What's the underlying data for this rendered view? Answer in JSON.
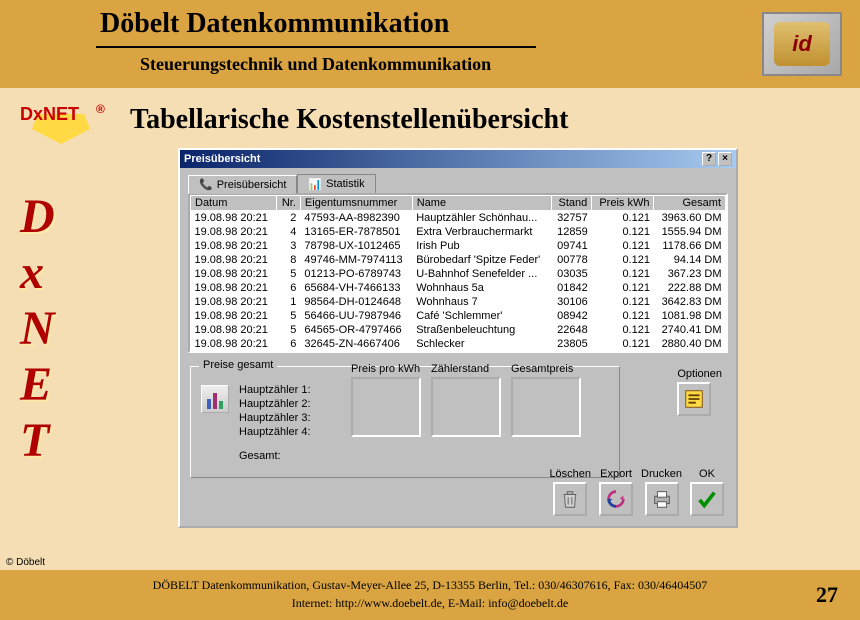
{
  "header": {
    "title": "Döbelt Datenkommunikation",
    "subtitle": "Steuerungstechnik und Datenkommunikation",
    "logo_text": "id"
  },
  "badge": {
    "d": "D",
    "x": "x",
    "net": "NET",
    "reg": "®"
  },
  "vertical": [
    "D",
    "x",
    "N",
    "E",
    "T"
  ],
  "body_title": "Tabellarische Kostenstellenübersicht",
  "dialog": {
    "title": "Preisübersicht",
    "help": "?",
    "close": "×",
    "tabs": {
      "t1": "Preisübersicht",
      "t2": "Statistik"
    },
    "columns": [
      "Datum",
      "Nr.",
      "Eigentumsnummer",
      "Name",
      "Stand",
      "Preis kWh",
      "Gesamt"
    ],
    "rows": [
      [
        "19.08.98 20:21",
        "2",
        "47593-AA-8982390",
        "Hauptzähler Schönhau...",
        "32757",
        "0.121",
        "3963.60 DM"
      ],
      [
        "19.08.98 20:21",
        "4",
        "13165-ER-7878501",
        "Extra Verbrauchermarkt",
        "12859",
        "0.121",
        "1555.94 DM"
      ],
      [
        "19.08.98 20:21",
        "3",
        "78798-UX-1012465",
        "Irish Pub",
        "09741",
        "0.121",
        "1178.66 DM"
      ],
      [
        "19.08.98 20:21",
        "8",
        "49746-MM-7974113",
        "Bürobedarf 'Spitze Feder'",
        "00778",
        "0.121",
        "94.14 DM"
      ],
      [
        "19.08.98 20:21",
        "5",
        "01213-PO-6789743",
        "U-Bahnhof Senefelder ...",
        "03035",
        "0.121",
        "367.23 DM"
      ],
      [
        "19.08.98 20:21",
        "6",
        "65684-VH-7466133",
        "Wohnhaus 5a",
        "01842",
        "0.121",
        "222.88 DM"
      ],
      [
        "19.08.98 20:21",
        "1",
        "98564-DH-0124648",
        "Wohnhaus 7",
        "30106",
        "0.121",
        "3642.83 DM"
      ],
      [
        "19.08.98 20:21",
        "5",
        "56466-UU-7987946",
        "Café 'Schlemmer'",
        "08942",
        "0.121",
        "1081.98 DM"
      ],
      [
        "19.08.98 20:21",
        "5",
        "64565-OR-4797466",
        "Straßenbeleuchtung",
        "22648",
        "0.121",
        "2740.41 DM"
      ],
      [
        "19.08.98 20:21",
        "6",
        "32645-ZN-4667406",
        "Schlecker",
        "23805",
        "0.121",
        "2880.40 DM"
      ]
    ],
    "group_title": "Preise gesamt",
    "hz": [
      "Hauptzähler 1:",
      "Hauptzähler 2:",
      "Hauptzähler 3:",
      "Hauptzähler 4:"
    ],
    "gesamt": "Gesamt:",
    "sunk_labels": [
      "Preis pro kWh",
      "Zählerstand",
      "Gesamtpreis"
    ],
    "optionen": "Optionen",
    "buttons": {
      "loeschen": "Löschen",
      "export": "Export",
      "drucken": "Drucken",
      "ok": "OK"
    }
  },
  "footer": {
    "line1": "DÖBELT Datenkommunikation, Gustav-Meyer-Allee 25, D-13355 Berlin, Tel.: 030/46307616, Fax: 030/46404507",
    "line2": "Internet: http://www.doebelt.de, E-Mail: info@doebelt.de",
    "page": "27",
    "copyright": "© Döbelt"
  },
  "colors": {
    "slide_bg": "#f5deb3",
    "bar_bg": "#d9a441",
    "brand_red": "#b00000",
    "win_bg": "#c0c0c0",
    "title_grad_a": "#0a246a",
    "title_grad_b": "#a6caf0"
  }
}
